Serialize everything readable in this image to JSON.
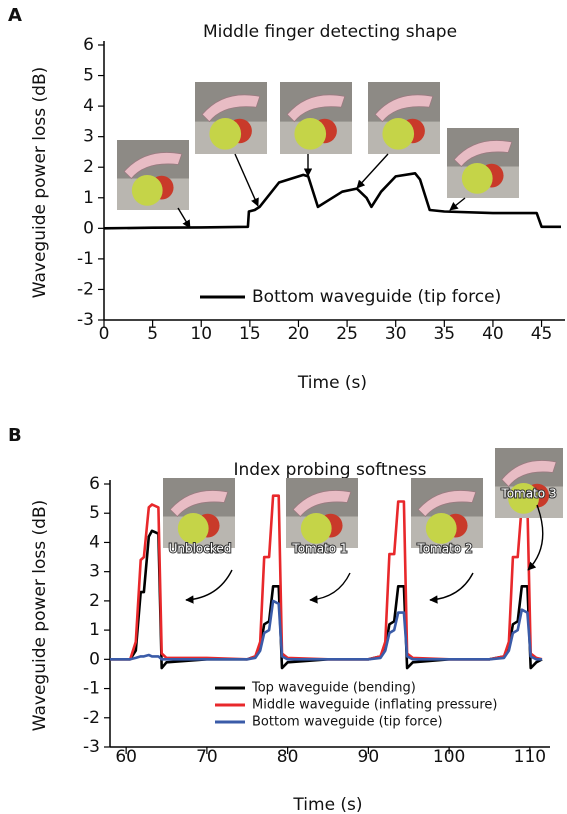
{
  "chart_data": [
    {
      "type": "line",
      "panel_label": "A",
      "title": "Middle finger detecting shape",
      "xlabel": "Time (s)",
      "ylabel": "Waveguide power loss (dB)",
      "x": [
        0,
        5,
        10,
        14.8,
        14.9,
        15.5,
        16,
        18,
        20.5,
        21,
        22,
        23,
        24.5,
        26,
        27,
        27.5,
        28.5,
        30,
        32,
        32.5,
        33.5,
        35,
        40,
        44.5,
        45,
        47
      ],
      "series": [
        {
          "name": "Bottom waveguide (tip force)",
          "color": "#000000",
          "values": [
            0,
            0.02,
            0.03,
            0.05,
            0.55,
            0.6,
            0.7,
            1.5,
            1.75,
            1.7,
            0.7,
            0.9,
            1.2,
            1.3,
            1.0,
            0.7,
            1.2,
            1.7,
            1.8,
            1.6,
            0.6,
            0.55,
            0.5,
            0.5,
            0.05,
            0.05
          ]
        }
      ],
      "xlim": [
        0,
        47
      ],
      "ylim": [
        -3,
        6
      ],
      "xticks": [
        0,
        5,
        10,
        15,
        20,
        25,
        30,
        35,
        40,
        45
      ],
      "yticks": [
        -3,
        -2,
        -1,
        0,
        1,
        2,
        3,
        4,
        5,
        6
      ],
      "annotations": []
    },
    {
      "type": "line",
      "panel_label": "B",
      "title": "Index probing softness",
      "xlabel": "Time (s)",
      "ylabel": "Waveguide power loss (dB)",
      "x": [
        58,
        60.5,
        61.2,
        61.8,
        62.2,
        62.8,
        63.2,
        64,
        64.4,
        65,
        70,
        75,
        76,
        76.6,
        77.1,
        77.7,
        78.2,
        78.9,
        79.3,
        80,
        85,
        90,
        91.5,
        92.1,
        92.6,
        93.2,
        93.7,
        94.4,
        94.8,
        95.5,
        100,
        105,
        106.8,
        107.4,
        107.9,
        108.5,
        109,
        109.7,
        110.1,
        110.8,
        111.5
      ],
      "series": [
        {
          "name": "Top waveguide (bending)",
          "color": "#000000",
          "values": [
            0,
            0,
            0.3,
            2.3,
            2.3,
            4.2,
            4.4,
            4.3,
            -0.3,
            -0.1,
            0,
            0,
            0.1,
            0.4,
            1.2,
            1.3,
            2.5,
            2.5,
            -0.3,
            -0.1,
            0,
            0,
            0.1,
            0.4,
            1.2,
            1.3,
            2.5,
            2.5,
            -0.3,
            -0.1,
            0,
            0,
            0.1,
            0.4,
            1.2,
            1.3,
            2.5,
            2.5,
            -0.3,
            -0.1,
            0
          ]
        },
        {
          "name": "Middle waveguide (inflating pressure)",
          "color": "#e8282b",
          "values": [
            0,
            0,
            0.6,
            3.4,
            3.5,
            5.2,
            5.3,
            5.2,
            0.2,
            0.05,
            0.05,
            0,
            0.1,
            0.6,
            3.5,
            3.5,
            5.6,
            5.6,
            0.2,
            0.05,
            0,
            0,
            0.1,
            0.6,
            3.6,
            3.6,
            5.4,
            5.4,
            0.2,
            0.05,
            0,
            0,
            0.1,
            0.6,
            3.5,
            3.5,
            5.3,
            5.3,
            0.2,
            0.05,
            0
          ]
        },
        {
          "name": "Bottom waveguide (tip force)",
          "color": "#3a5ba8",
          "values": [
            0,
            0,
            0.05,
            0.1,
            0.1,
            0.15,
            0.1,
            0.1,
            0,
            0,
            0,
            0,
            0.05,
            0.3,
            0.9,
            1.0,
            2.0,
            1.9,
            0.1,
            0,
            0,
            0,
            0.05,
            0.3,
            0.9,
            1.0,
            1.6,
            1.6,
            0.1,
            0,
            0,
            0,
            0.05,
            0.3,
            0.9,
            1.0,
            1.7,
            1.6,
            0.1,
            0,
            0
          ]
        }
      ],
      "xlim": [
        58,
        112
      ],
      "ylim": [
        -3,
        6
      ],
      "xticks": [
        60,
        70,
        80,
        90,
        100,
        110
      ],
      "yticks": [
        -3,
        -2,
        -1,
        0,
        1,
        2,
        3,
        4,
        5,
        6
      ],
      "annotations": [
        "Unblocked",
        "Tomato 1",
        "Tomato 2",
        "Tomato 3"
      ]
    }
  ]
}
